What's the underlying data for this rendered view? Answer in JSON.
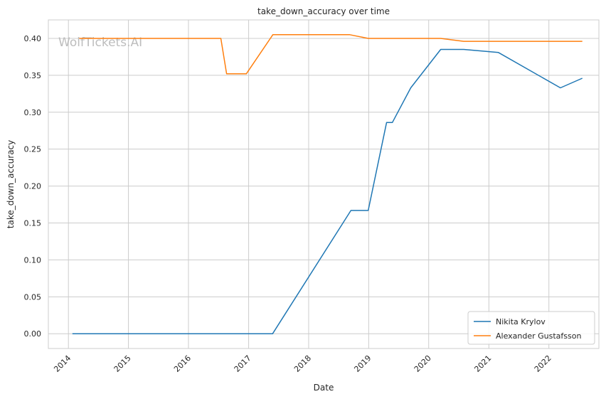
{
  "chart_data": {
    "type": "line",
    "title": "take_down_accuracy over time",
    "xlabel": "Date",
    "ylabel": "take_down_accuracy",
    "watermark": "WolfTickets.AI",
    "xlim": [
      "2013-09-01",
      "2022-11-01"
    ],
    "ylim": [
      -0.02,
      0.425
    ],
    "x_ticks": [
      "2014",
      "2015",
      "2016",
      "2017",
      "2018",
      "2019",
      "2020",
      "2021",
      "2022"
    ],
    "y_ticks": [
      "0.00",
      "0.05",
      "0.10",
      "0.15",
      "0.20",
      "0.25",
      "0.30",
      "0.35",
      "0.40"
    ],
    "grid": true,
    "legend_position": "lower right",
    "series": [
      {
        "name": "Nikita Krylov",
        "color": "#1f77b4",
        "x": [
          "2014-01-25",
          "2017-05-27",
          "2018-09-15",
          "2018-12-29",
          "2019-04-20",
          "2019-05-25",
          "2019-09-14",
          "2020-03-14",
          "2020-08-01",
          "2021-02-27",
          "2022-03-12",
          "2022-07-23"
        ],
        "y": [
          0.0,
          0.0,
          0.167,
          0.167,
          0.286,
          0.286,
          0.333,
          0.385,
          0.385,
          0.381,
          0.333,
          0.346
        ]
      },
      {
        "name": "Alexander Gustafsson",
        "color": "#ff7f0e",
        "x": [
          "2014-03-08",
          "2016-07-16",
          "2016-08-20",
          "2016-12-18",
          "2017-05-28",
          "2018-09-08",
          "2018-12-29",
          "2020-03-14",
          "2020-08-01",
          "2022-07-23"
        ],
        "y": [
          0.4,
          0.4,
          0.352,
          0.352,
          0.405,
          0.405,
          0.4,
          0.4,
          0.396,
          0.396
        ]
      }
    ]
  }
}
